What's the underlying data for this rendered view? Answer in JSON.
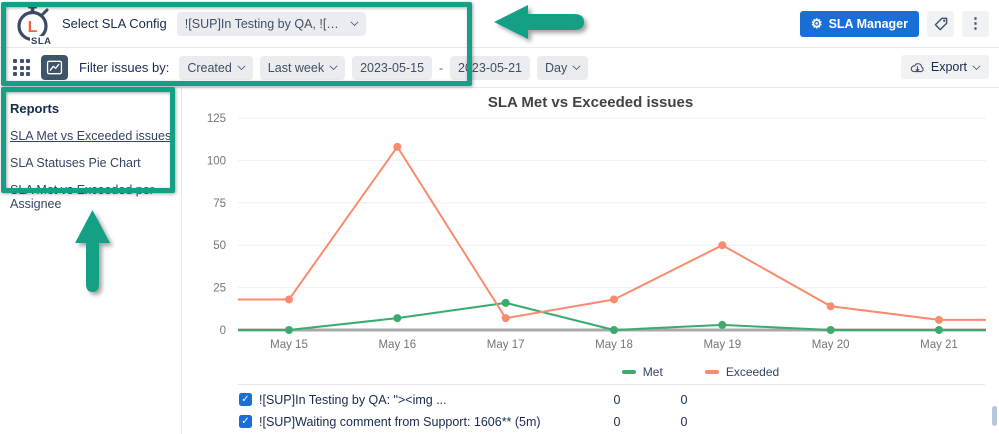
{
  "annotation_color": "#14A085",
  "header": {
    "logo_text": "SLA",
    "logo_letter": "L",
    "config_label": "Select SLA Config",
    "config_value": "![SUP]In Testing by QA, ![SUP]Wai...",
    "sla_manager_label": "SLA Manager"
  },
  "toolbar": {
    "filter_label": "Filter issues by:",
    "filter_field": "Created",
    "period": "Last week",
    "date_from": "2023-05-15",
    "date_separator": "-",
    "date_to": "2023-05-21",
    "granularity": "Day",
    "export_label": "Export"
  },
  "sidebar": {
    "title": "Reports",
    "items": [
      {
        "label": "SLA Met vs Exceeded issues",
        "active": true
      },
      {
        "label": "SLA Statuses Pie Chart",
        "active": false
      },
      {
        "label": "SLA Met vs Exceeded per Assignee",
        "active": false
      }
    ]
  },
  "chart_data": {
    "type": "line",
    "title": "SLA Met vs Exceeded issues",
    "categories": [
      "May 15",
      "May 16",
      "May 17",
      "May 18",
      "May 19",
      "May 20",
      "May 21"
    ],
    "series": [
      {
        "name": "Met",
        "color": "#3BAA6E",
        "values": [
          0,
          7,
          16,
          0,
          3,
          0,
          0
        ]
      },
      {
        "name": "Exceeded",
        "color": "#F98B6F",
        "values": [
          18,
          108,
          7,
          18,
          50,
          14,
          6
        ]
      }
    ],
    "ylim": [
      0,
      125
    ],
    "yticks": [
      0,
      25,
      50,
      75,
      100,
      125
    ],
    "grid": true,
    "legend_position": "bottom"
  },
  "table": {
    "rows": [
      {
        "checked": true,
        "label": "![SUP]In Testing by QA: \"><img ...",
        "met": "0",
        "exceeded": "0"
      },
      {
        "checked": true,
        "label": "![SUP]Waiting comment from Support: 1606** (5m)",
        "met": "0",
        "exceeded": "0"
      }
    ]
  }
}
